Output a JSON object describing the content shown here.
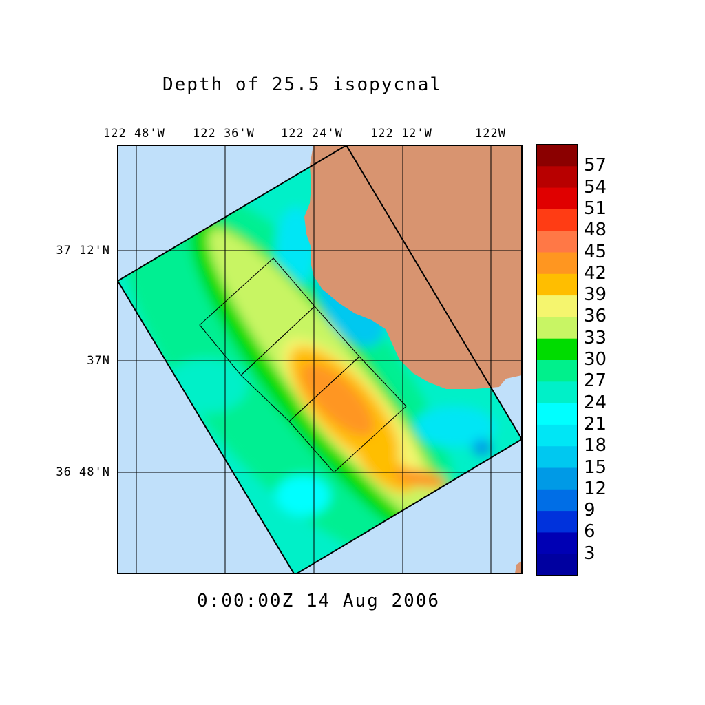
{
  "title": "Depth of 25.5 isopycnal",
  "timestamp": "0:00:00Z  14 Aug 2006",
  "axes": {
    "longitude_labels": [
      "122 48'W",
      "122 36'W",
      "122 24'W",
      "122 12'W",
      "122W"
    ],
    "latitude_labels": [
      "37 12'N",
      "37N",
      "36 48'N"
    ]
  },
  "colorbar": {
    "labels": [
      "57",
      "54",
      "51",
      "48",
      "45",
      "42",
      "39",
      "36",
      "33",
      "30",
      "27",
      "24",
      "21",
      "18",
      "15",
      "12",
      "9",
      "6",
      "3"
    ],
    "colors": [
      "#8b0000",
      "#b80000",
      "#e00000",
      "#ff3c14",
      "#ff7846",
      "#ff9620",
      "#ffbe00",
      "#f5f56e",
      "#c8f564",
      "#00dc00",
      "#00f08c",
      "#00f0c8",
      "#00ffff",
      "#00e6f5",
      "#00c8f0",
      "#009ae6",
      "#006ee6",
      "#0032dc",
      "#0000b4"
    ]
  },
  "map_colors": {
    "ocean": "#c0e0fa",
    "land": "#d89470"
  }
}
